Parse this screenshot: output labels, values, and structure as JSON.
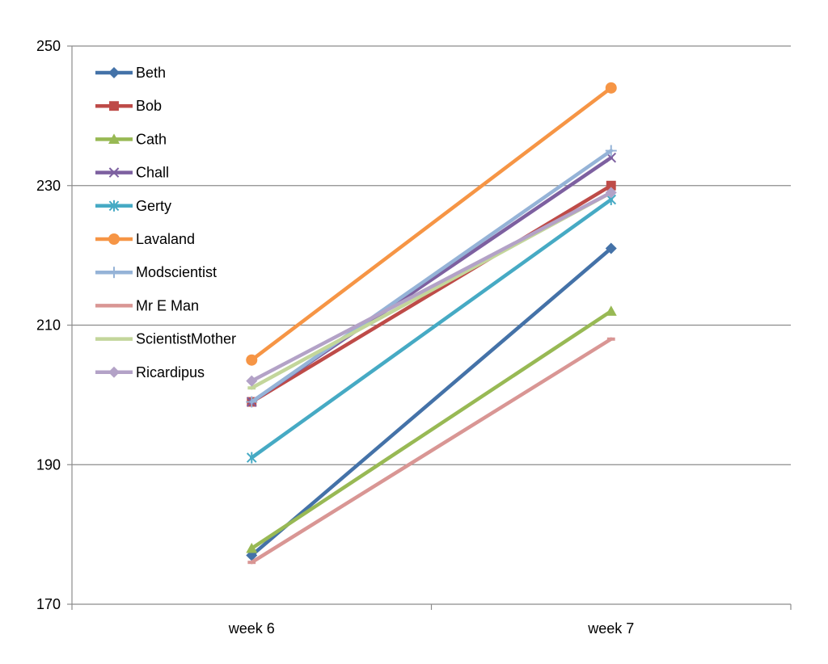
{
  "chart_data": {
    "type": "line",
    "title": "",
    "xlabel": "",
    "ylabel": "",
    "categories": [
      "week 6",
      "week 7"
    ],
    "ylim": [
      170,
      250
    ],
    "yticks": [
      170,
      190,
      210,
      230,
      250
    ],
    "grid": true,
    "legend_position": "top-left",
    "series": [
      {
        "name": "Beth",
        "values": [
          177,
          221
        ],
        "color": "#4472A8",
        "marker": "diamond"
      },
      {
        "name": "Bob",
        "values": [
          199,
          230
        ],
        "color": "#BE4B48",
        "marker": "square"
      },
      {
        "name": "Cath",
        "values": [
          178,
          212
        ],
        "color": "#98B954",
        "marker": "triangle"
      },
      {
        "name": "Chall",
        "values": [
          199,
          234
        ],
        "color": "#7D60A0",
        "marker": "x"
      },
      {
        "name": "Gerty",
        "values": [
          191,
          228
        ],
        "color": "#46AAC4",
        "marker": "star"
      },
      {
        "name": "Lavaland",
        "values": [
          205,
          244
        ],
        "color": "#F69545",
        "marker": "circle"
      },
      {
        "name": "Modscientist",
        "values": [
          199,
          235
        ],
        "color": "#95B3D7",
        "marker": "plus"
      },
      {
        "name": "Mr E Man",
        "values": [
          176,
          208
        ],
        "color": "#D99694",
        "marker": "dash"
      },
      {
        "name": "ScientistMother",
        "values": [
          201,
          229
        ],
        "color": "#C3D69B",
        "marker": "dash"
      },
      {
        "name": "Ricardipus",
        "values": [
          202,
          229
        ],
        "color": "#B3A2C7",
        "marker": "diamond"
      }
    ]
  }
}
